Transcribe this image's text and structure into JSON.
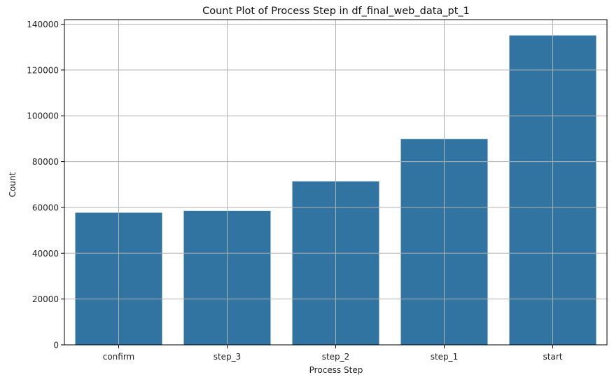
{
  "chart_data": {
    "type": "bar",
    "title": "Count Plot of Process Step in df_final_web_data_pt_1",
    "xlabel": "Process Step",
    "ylabel": "Count",
    "categories": [
      "confirm",
      "step_3",
      "step_2",
      "step_1",
      "start"
    ],
    "values": [
      57700,
      58500,
      71400,
      89900,
      135100
    ],
    "ylim": [
      0,
      142000
    ],
    "yticks": [
      0,
      20000,
      40000,
      60000,
      80000,
      100000,
      120000,
      140000
    ],
    "grid": true,
    "bar_color": "#3274a1",
    "grid_color": "#b0b0b0"
  }
}
